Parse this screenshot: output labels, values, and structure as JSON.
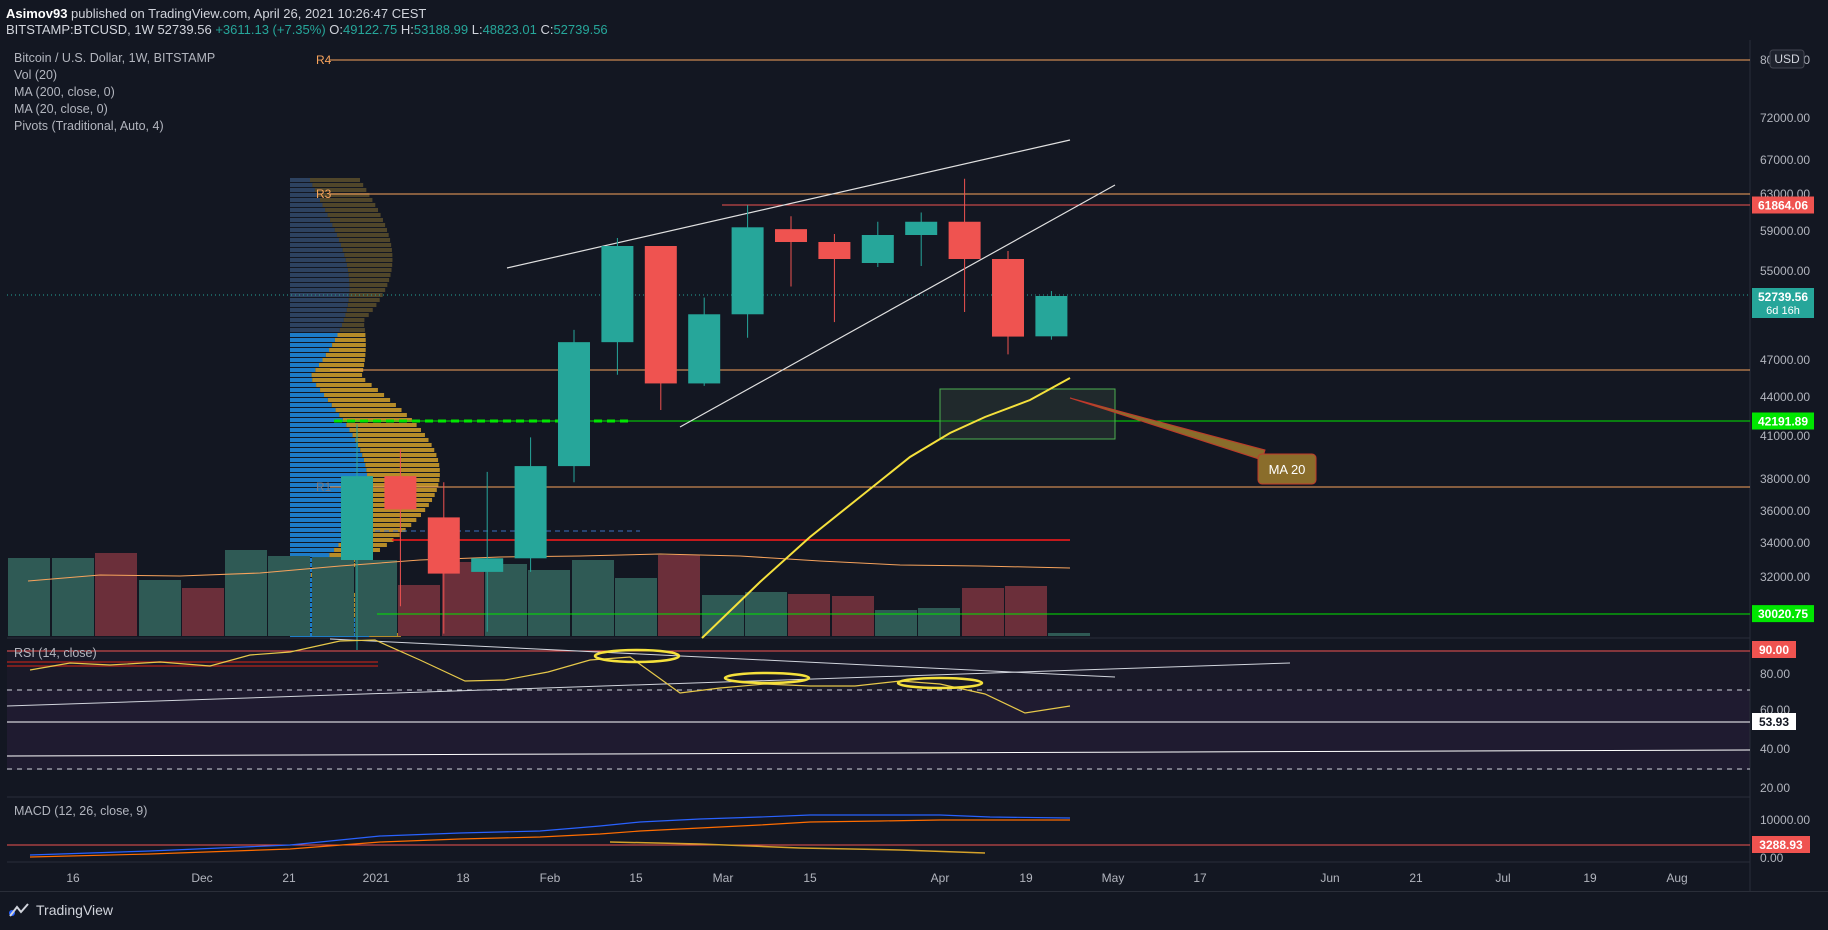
{
  "header": {
    "author": "Asimov93",
    "published_text": "published on TradingView.com, April 26, 2021 10:26:47 CEST",
    "symbol_line": "BITSTAMP:BTCUSD, 1W",
    "price": "52739.56",
    "change": "+3611.13 (+7.35%)",
    "o_label": "O:",
    "o_value": "49122.75",
    "h_label": "H:",
    "h_value": "53188.99",
    "l_label": "L:",
    "l_value": "48823.01",
    "c_label": "C:",
    "c_value": "52739.56"
  },
  "legend": {
    "title": "Bitcoin / U.S. Dollar, 1W, BITSTAMP",
    "vol": "Vol (20)",
    "ma200": "MA (200, close, 0)",
    "ma20": "MA (20, close, 0)",
    "pivots": "Pivots (Traditional, Auto, 4)"
  },
  "rsi_label": "RSI (14, close)",
  "macd_label": "MACD (12, 26, close, 9)",
  "currency_button": "USD",
  "annotation": {
    "text": "MA 20"
  },
  "pivot_labels": [
    "R4",
    "R3",
    "R1"
  ],
  "footer": {
    "brand": "TradingView"
  },
  "colors": {
    "up": "#26a69a",
    "down": "#ef5350",
    "ma20": "#f5e13c",
    "pivot": "#f7a35c",
    "background": "#131722",
    "grid": "#1f2330"
  },
  "chart_data": {
    "type": "candlestick",
    "title": "Bitcoin / U.S. Dollar, 1W, BITSTAMP",
    "price_axis_ticks": [
      "80000.00",
      "72000.00",
      "67000.00",
      "63000.00",
      "59000.00",
      "55000.00",
      "47000.00",
      "44000.00",
      "41000.00",
      "38000.00",
      "36000.00",
      "34000.00",
      "32000.00"
    ],
    "time_axis_ticks": [
      "16",
      "Dec",
      "21",
      "2021",
      "18",
      "Feb",
      "15",
      "Mar",
      "15",
      "Apr",
      "19",
      "May",
      "17",
      "Jun",
      "21",
      "Jul",
      "19",
      "Aug"
    ],
    "price_tags": [
      {
        "value": "61864.06",
        "color": "#ef5350"
      },
      {
        "value": "52739.56",
        "sub": "6d 16h",
        "color": "#26a69a"
      },
      {
        "value": "42191.89",
        "color": "#00e600"
      },
      {
        "value": "30020.75",
        "color": "#00e600"
      }
    ],
    "candles": [
      {
        "date": "2021-01-04",
        "o": 33000,
        "h": 41900,
        "l": 28000,
        "c": 38200
      },
      {
        "date": "2021-01-11",
        "o": 38200,
        "h": 40100,
        "l": 30400,
        "c": 36100
      },
      {
        "date": "2021-01-18",
        "o": 35600,
        "h": 37800,
        "l": 28900,
        "c": 32200
      },
      {
        "date": "2021-01-25",
        "o": 32300,
        "h": 38500,
        "l": 29000,
        "c": 33100
      },
      {
        "date": "2021-02-01",
        "o": 33100,
        "h": 40900,
        "l": 32300,
        "c": 38900
      },
      {
        "date": "2021-02-08",
        "o": 38900,
        "h": 49700,
        "l": 37800,
        "c": 48600
      },
      {
        "date": "2021-02-15",
        "o": 48600,
        "h": 58300,
        "l": 45800,
        "c": 57500
      },
      {
        "date": "2021-02-22",
        "o": 57500,
        "h": 57500,
        "l": 43000,
        "c": 45100
      },
      {
        "date": "2021-03-01",
        "o": 45100,
        "h": 52600,
        "l": 44900,
        "c": 51100
      },
      {
        "date": "2021-03-08",
        "o": 51100,
        "h": 61800,
        "l": 49000,
        "c": 59400
      },
      {
        "date": "2021-03-15",
        "o": 59200,
        "h": 60600,
        "l": 53600,
        "c": 57900
      },
      {
        "date": "2021-03-22",
        "o": 57900,
        "h": 58700,
        "l": 50400,
        "c": 56200
      },
      {
        "date": "2021-03-29",
        "o": 55800,
        "h": 60000,
        "l": 55400,
        "c": 58600
      },
      {
        "date": "2021-04-05",
        "o": 58600,
        "h": 61000,
        "l": 55500,
        "c": 60000
      },
      {
        "date": "2021-04-12",
        "o": 60000,
        "h": 64800,
        "l": 51300,
        "c": 56200
      },
      {
        "date": "2021-04-19",
        "o": 56200,
        "h": 57000,
        "l": 47500,
        "c": 49100
      },
      {
        "date": "2021-04-26",
        "o": 49122.75,
        "h": 53188.99,
        "l": 48823.01,
        "c": 52739.56
      }
    ],
    "volume_label": "Vol (20)",
    "rsi": {
      "label": "RSI (14, close)",
      "levels": [
        20,
        40,
        60,
        80,
        90
      ],
      "tags": [
        {
          "value": "90.00",
          "color": "#ef5350"
        },
        {
          "value": "53.93",
          "color": "#ffffff"
        }
      ]
    },
    "macd": {
      "label": "MACD (12, 26, close, 9)",
      "ticks": [
        "10000.00",
        "0.00"
      ],
      "tags": [
        {
          "value": "3288.93",
          "color": "#ef5350"
        }
      ]
    }
  }
}
